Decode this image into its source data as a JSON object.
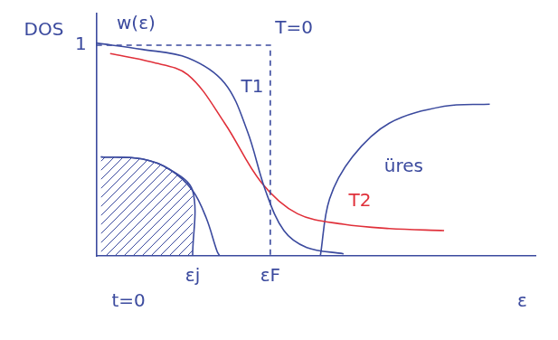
{
  "chart_data": {
    "type": "line",
    "xlim": [
      0,
      10
    ],
    "ylim": [
      0,
      1.15
    ],
    "xticks": [
      {
        "value": 2.19,
        "label": "εj"
      },
      {
        "value": 3.96,
        "label": "εF"
      }
    ],
    "yticks": [
      1
    ],
    "grid": false,
    "series": [
      {
        "color": "#3b4a9e",
        "line_style": "dashed",
        "x": [
          0,
          3.96,
          3.96
        ],
        "values": [
          1,
          1,
          0
        ]
      },
      {
        "color": "#3b4a9e",
        "line_style": "solid",
        "x": [
          0,
          1.04,
          2.08,
          2.92,
          3.44,
          3.85,
          4.27,
          4.79,
          5.63
        ],
        "values": [
          1.01,
          0.98,
          0.94,
          0.82,
          0.59,
          0.31,
          0.12,
          0.04,
          0.01
        ]
      },
      {
        "color": "#e0303a",
        "line_style": "solid",
        "x": [
          0.31,
          1.25,
          2.08,
          2.92,
          3.75,
          4.58,
          5.63,
          6.67,
          7.92
        ],
        "values": [
          0.96,
          0.92,
          0.86,
          0.63,
          0.35,
          0.2,
          0.15,
          0.13,
          0.12
        ]
      },
      {
        "color": "#3b4a9e",
        "line_style": "solid",
        "x": [
          0.1,
          1.04,
          1.67,
          2.19,
          2.5,
          2.75,
          2.81
        ],
        "values": [
          0.47,
          0.46,
          0.41,
          0.31,
          0.18,
          0.02,
          0
        ]
      },
      {
        "type": "area",
        "color": "#3b4a9e",
        "line_style": "solid",
        "x": [
          0.1,
          1.04,
          1.67,
          2.19,
          2.19
        ],
        "values": [
          0.47,
          0.46,
          0.41,
          0.31,
          0
        ]
      },
      {
        "color": "#3b4a9e",
        "line_style": "solid",
        "x": [
          5.1,
          5.31,
          5.83,
          6.67,
          7.92,
          8.96
        ],
        "values": [
          0,
          0.27,
          0.47,
          0.63,
          0.71,
          0.72
        ]
      }
    ],
    "annotations": [
      {
        "text": "DOS",
        "x": -1.2,
        "y": 1.07
      },
      {
        "text": "w(ε)",
        "x": 0.9,
        "y": 1.1
      },
      {
        "text": "T=0",
        "x": 4.5,
        "y": 1.08
      },
      {
        "text": "T1",
        "x": 3.55,
        "y": 0.8
      },
      {
        "text": "T2",
        "x": 6.0,
        "y": 0.26,
        "color": "#e0303a"
      },
      {
        "text": "üres",
        "x": 7.0,
        "y": 0.42
      },
      {
        "text": "t=0",
        "x": 0.73,
        "y": -0.22
      },
      {
        "text": "ε",
        "x": 9.7,
        "y": -0.22
      }
    ]
  }
}
